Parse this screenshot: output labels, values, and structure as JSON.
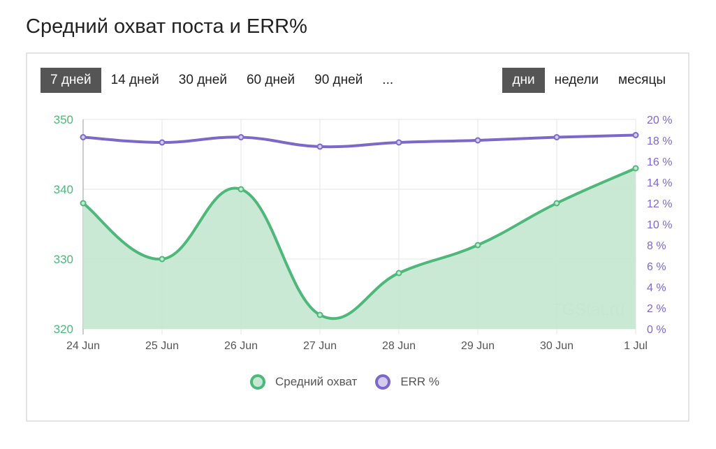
{
  "page": {
    "title": "Средний охват поста и ERR%"
  },
  "range_buttons": [
    {
      "label": "7 дней",
      "active": true
    },
    {
      "label": "14 дней",
      "active": false
    },
    {
      "label": "30 дней",
      "active": false
    },
    {
      "label": "60 дней",
      "active": false
    },
    {
      "label": "90 дней",
      "active": false
    },
    {
      "label": "...",
      "active": false
    }
  ],
  "granularity_buttons": [
    {
      "label": "дни",
      "active": true
    },
    {
      "label": "недели",
      "active": false
    },
    {
      "label": "месяцы",
      "active": false
    }
  ],
  "watermark": "TGStat.ru",
  "colors": {
    "reach_line": "#4db87a",
    "reach_fill": "#c6e8d3",
    "err_line": "#7b68c9",
    "err_fill": "#d4ccf0",
    "left_axis": "#4db87a",
    "right_axis": "#7b68c9",
    "grid": "#e6e6e6"
  },
  "chart_data": {
    "type": "line",
    "categories": [
      "24 Jun",
      "25 Jun",
      "26 Jun",
      "27 Jun",
      "28 Jun",
      "29 Jun",
      "30 Jun",
      "1 Jul"
    ],
    "y_left": {
      "range": [
        320,
        350
      ],
      "ticks": [
        "320",
        "330",
        "340",
        "350"
      ]
    },
    "y_right": {
      "range": [
        0,
        20
      ],
      "ticks": [
        "0 %",
        "2 %",
        "4 %",
        "6 %",
        "8 %",
        "10 %",
        "12 %",
        "14 %",
        "16 %",
        "18 %",
        "20 %"
      ]
    },
    "grid": true,
    "legend_position": "bottom",
    "series": [
      {
        "name": "Средний охват",
        "axis": "left",
        "area": true,
        "values": [
          338,
          330,
          340,
          322,
          328,
          332,
          338,
          343
        ]
      },
      {
        "name": "ERR %",
        "axis": "right",
        "area": false,
        "values": [
          18.3,
          17.8,
          18.3,
          17.4,
          17.8,
          18.0,
          18.3,
          18.5
        ]
      }
    ]
  }
}
